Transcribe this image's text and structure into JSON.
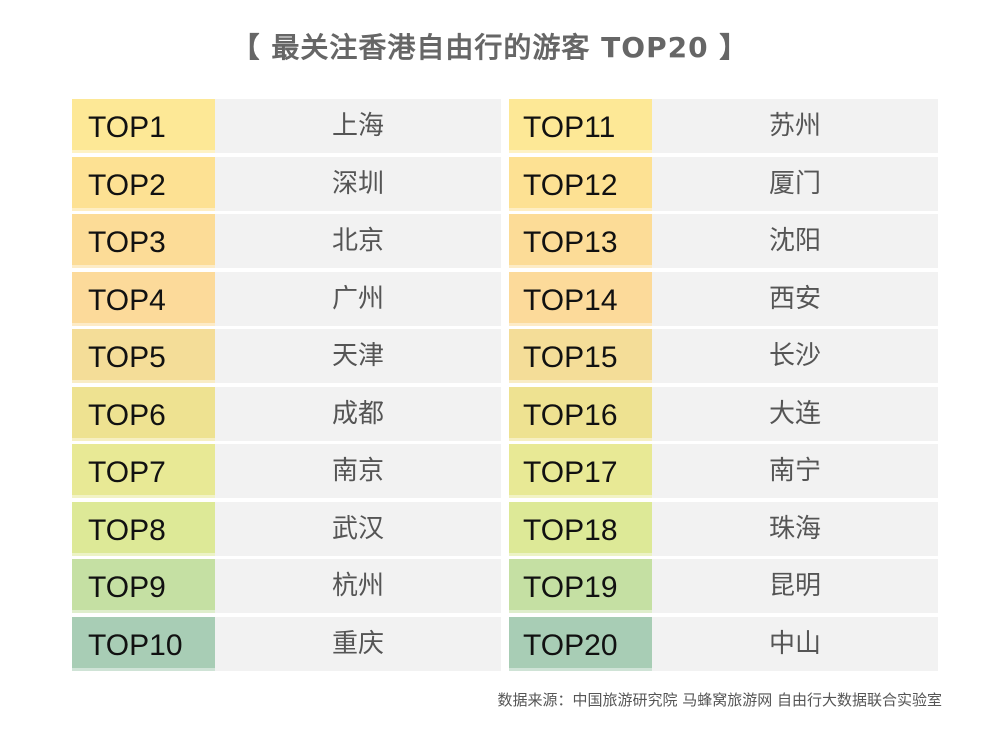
{
  "title": "【 最关注香港自由行的游客 TOP20 】",
  "source": "数据来源：中国旅游研究院 马蜂窝旅游网 自由行大数据联合实验室",
  "colors": {
    "row_colors": [
      "#fde896",
      "#fde193",
      "#fcdc97",
      "#fcda9a",
      "#f4dd98",
      "#eee291",
      "#e8e995",
      "#dde997",
      "#c5e0a3",
      "#a8cdb5"
    ],
    "city_background": "#f2f2f2"
  },
  "left": [
    {
      "rank": "TOP1",
      "city": "上海"
    },
    {
      "rank": "TOP2",
      "city": "深圳"
    },
    {
      "rank": "TOP3",
      "city": "北京"
    },
    {
      "rank": "TOP4",
      "city": "广州"
    },
    {
      "rank": "TOP5",
      "city": "天津"
    },
    {
      "rank": "TOP6",
      "city": "成都"
    },
    {
      "rank": "TOP7",
      "city": "南京"
    },
    {
      "rank": "TOP8",
      "city": "武汉"
    },
    {
      "rank": "TOP9",
      "city": "杭州"
    },
    {
      "rank": "TOP10",
      "city": "重庆"
    }
  ],
  "right": [
    {
      "rank": "TOP11",
      "city": "苏州"
    },
    {
      "rank": "TOP12",
      "city": "厦门"
    },
    {
      "rank": "TOP13",
      "city": "沈阳"
    },
    {
      "rank": "TOP14",
      "city": "西安"
    },
    {
      "rank": "TOP15",
      "city": "长沙"
    },
    {
      "rank": "TOP16",
      "city": "大连"
    },
    {
      "rank": "TOP17",
      "city": "南宁"
    },
    {
      "rank": "TOP18",
      "city": "珠海"
    },
    {
      "rank": "TOP19",
      "city": "昆明"
    },
    {
      "rank": "TOP20",
      "city": "中山"
    }
  ]
}
